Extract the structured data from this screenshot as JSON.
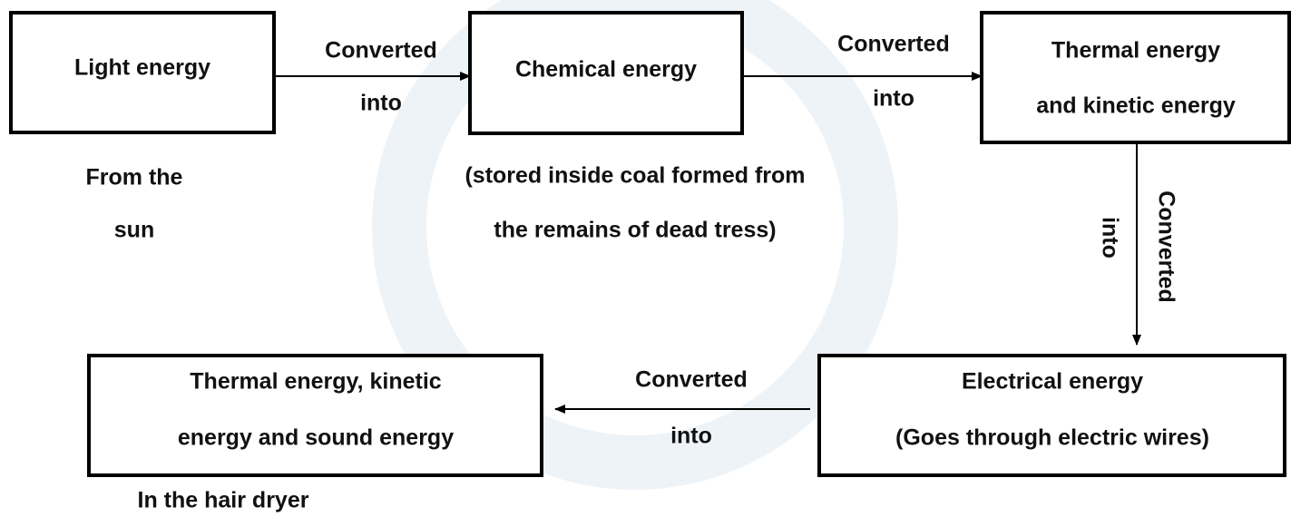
{
  "nodes": [
    {
      "lines": [
        "Light energy"
      ]
    },
    {
      "lines": [
        "Chemical energy"
      ]
    },
    {
      "lines": [
        "Thermal energy",
        "and kinetic energy"
      ]
    },
    {
      "lines": [
        "Electrical energy",
        "(Goes through electric wires)"
      ]
    },
    {
      "lines": [
        "Thermal energy, kinetic",
        "energy and sound energy"
      ]
    }
  ],
  "edges": [
    {
      "lines": [
        "Converted",
        "into"
      ]
    },
    {
      "lines": [
        "Converted",
        "into"
      ]
    },
    {
      "lines": [
        "Converted",
        "into"
      ]
    },
    {
      "lines": [
        "Converted",
        "into"
      ]
    }
  ],
  "notes": [
    {
      "lines": [
        "From the",
        "sun"
      ]
    },
    {
      "lines": [
        "(stored inside coal formed from",
        "the remains of dead tress)"
      ]
    },
    {
      "lines": [
        "In the hair dryer"
      ]
    }
  ]
}
